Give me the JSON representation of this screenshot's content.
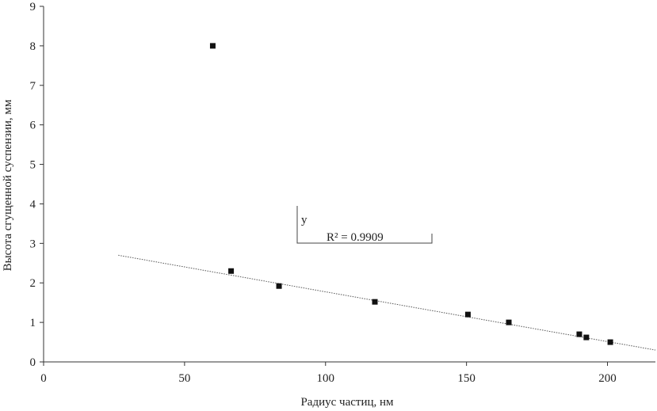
{
  "chart_data": {
    "type": "scatter",
    "title": "",
    "xlabel": "Радиус частиц, нм",
    "ylabel": "Высота сгущенной суспензии, мм",
    "xlim": [
      0,
      217
    ],
    "ylim": [
      0,
      9
    ],
    "x_ticks": [
      0,
      50,
      100,
      150,
      200
    ],
    "y_ticks": [
      0,
      1,
      2,
      3,
      4,
      5,
      6,
      7,
      8,
      9
    ],
    "grid": false,
    "legend": "none",
    "marker_color": "#111111",
    "trendline_color": "#555555",
    "series": [
      {
        "points": [
          {
            "x": 60,
            "y": 8.0
          },
          {
            "x": 66.5,
            "y": 2.3
          },
          {
            "x": 83.5,
            "y": 1.92
          },
          {
            "x": 117.5,
            "y": 1.52
          },
          {
            "x": 150.5,
            "y": 1.2
          },
          {
            "x": 165,
            "y": 1.0
          },
          {
            "x": 190,
            "y": 0.7
          },
          {
            "x": 192.5,
            "y": 0.62
          },
          {
            "x": 201,
            "y": 0.5
          }
        ]
      }
    ],
    "trendline": {
      "type": "linear",
      "x_start": 26.5,
      "x_end": 217,
      "y_start": 2.7,
      "y_end": 0.3
    },
    "annotation": {
      "line1": "y",
      "line2": "R² = 0.9909"
    }
  }
}
